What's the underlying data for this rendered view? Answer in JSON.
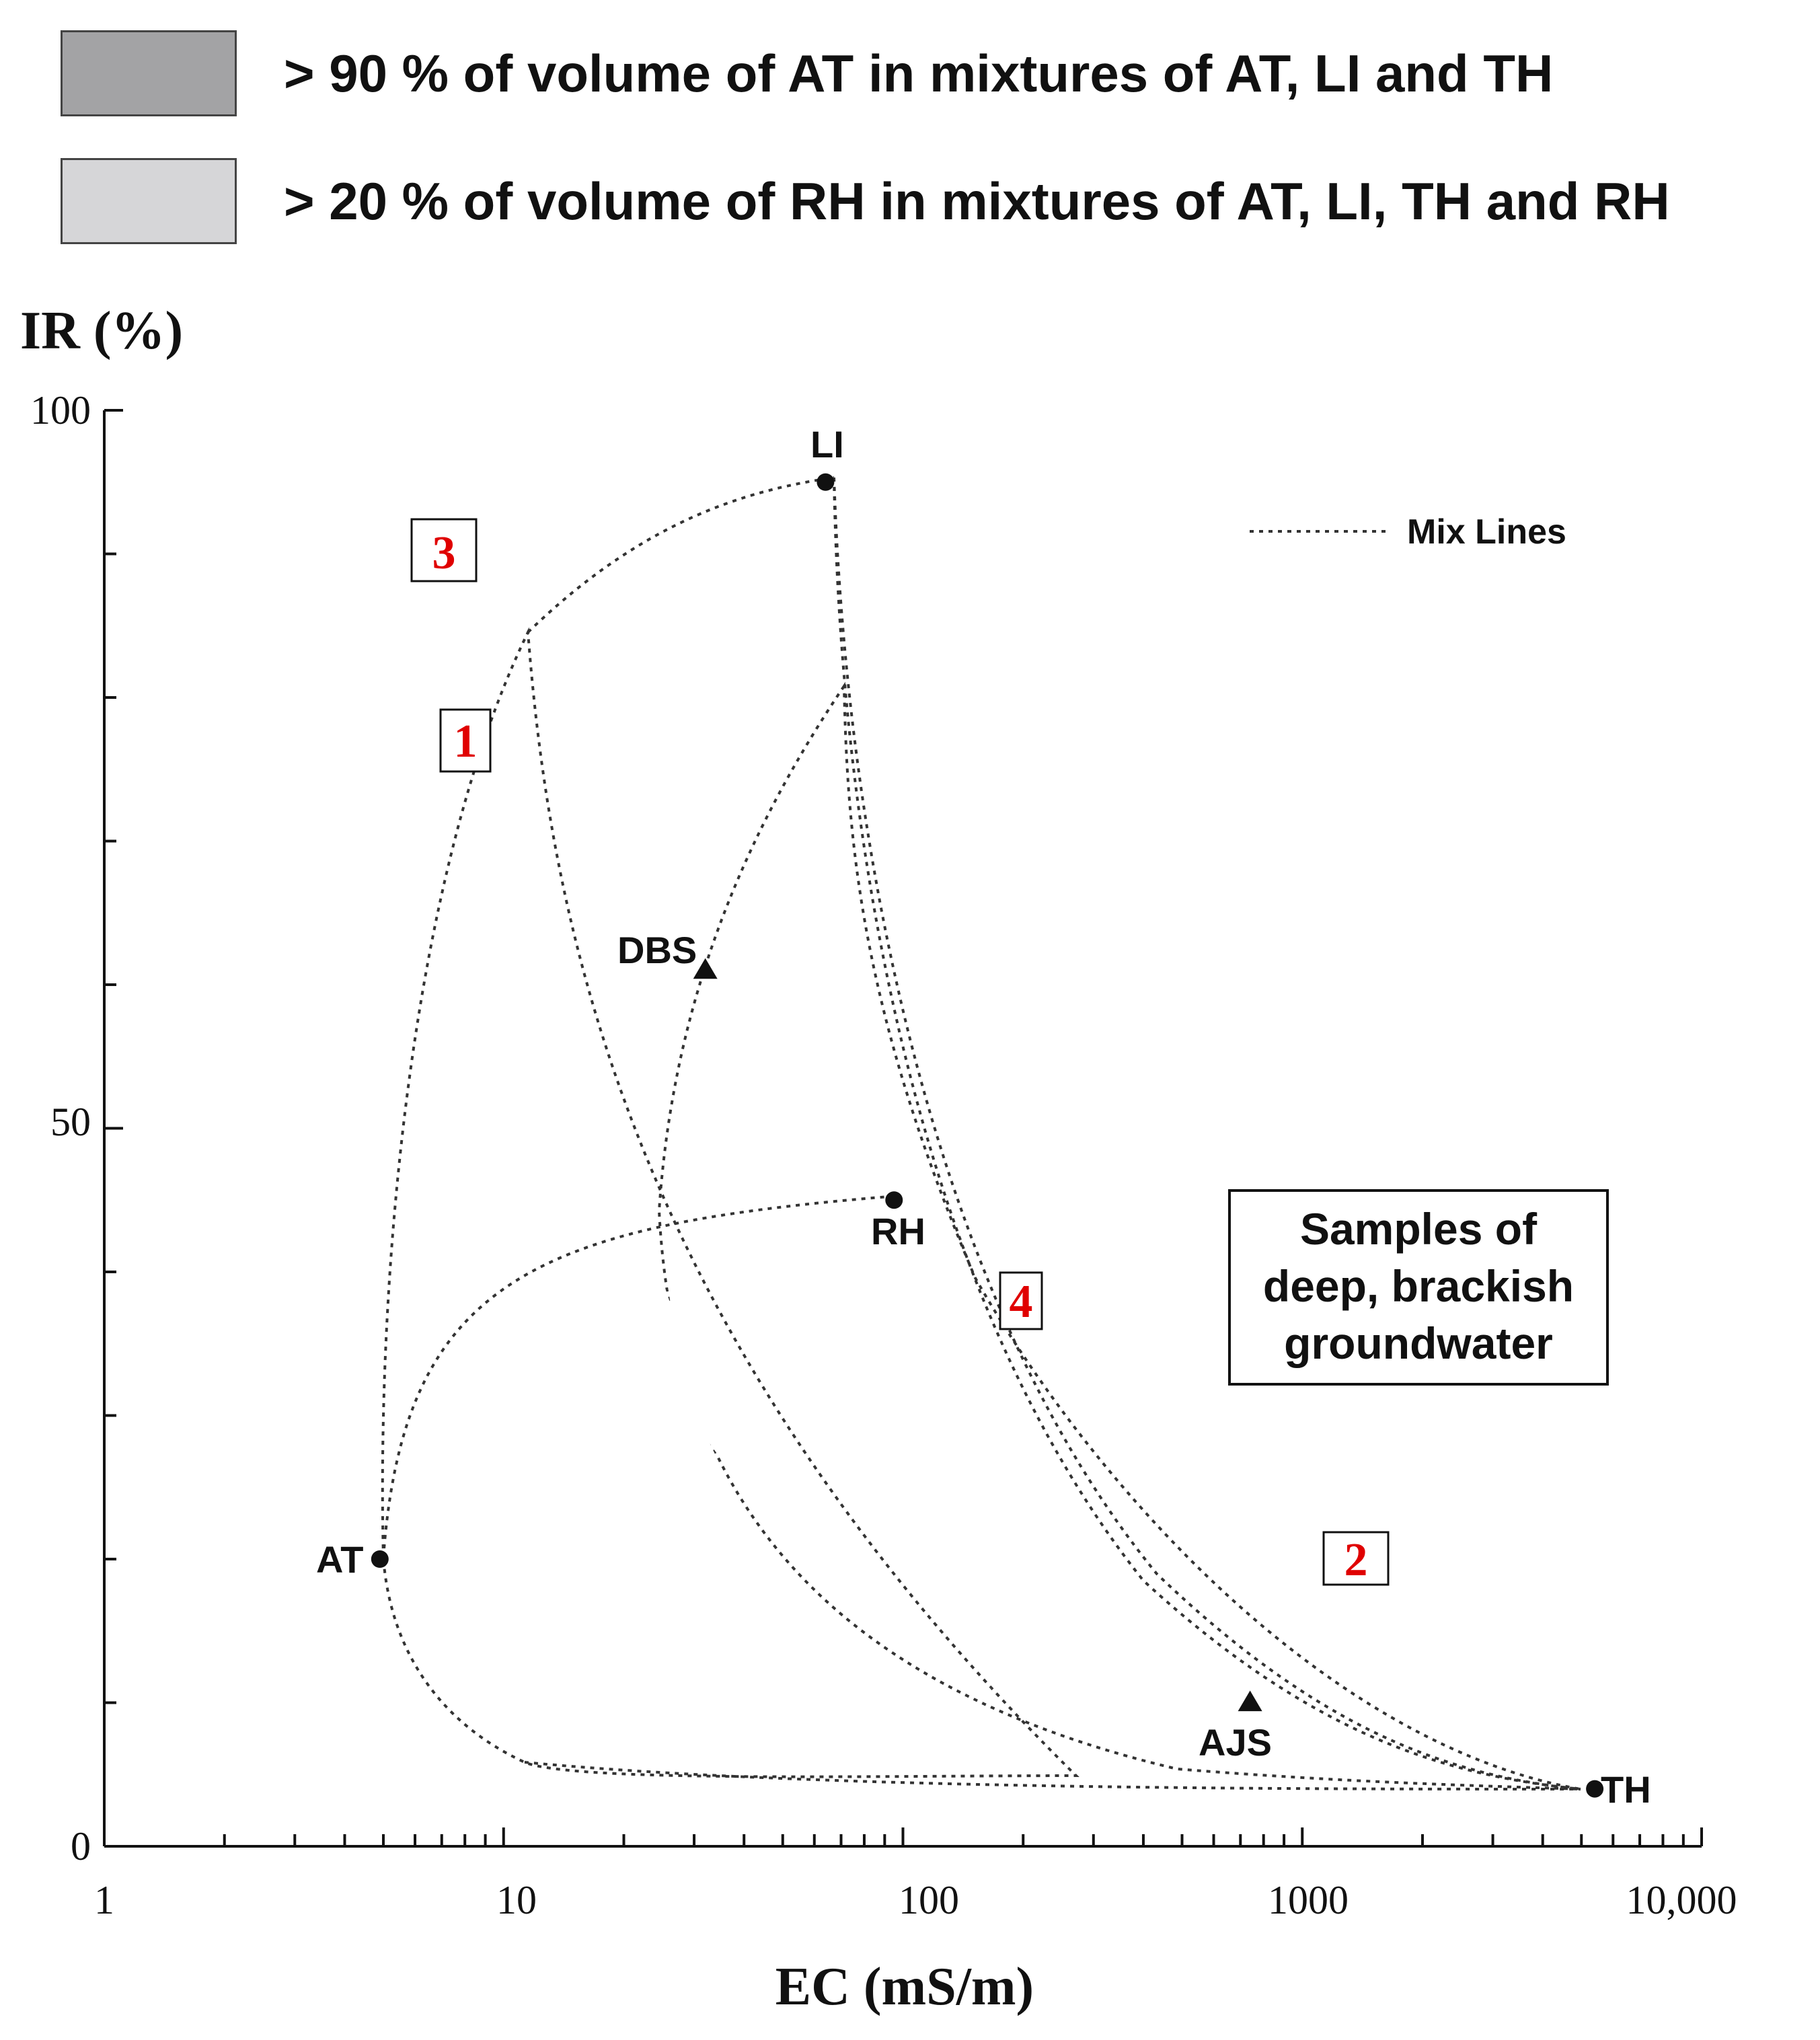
{
  "legend": {
    "items": [
      {
        "label": "> 90 % of volume of AT in mixtures of AT, LI and TH",
        "color": "#a3a3a5"
      },
      {
        "label": "> 20 % of volume of RH in mixtures of AT, LI, TH and RH",
        "color": "#d6d6d8"
      }
    ]
  },
  "chart_data": {
    "type": "scatter",
    "title": "",
    "xlabel": "EC (mS/m)",
    "ylabel": "IR (%)",
    "xscale": "log",
    "xlim": [
      1,
      10000
    ],
    "ylim": [
      0,
      100
    ],
    "x_tick_labels": [
      "1",
      "10",
      "100",
      "1000",
      "10,000"
    ],
    "y_tick_labels": [
      "0",
      "50",
      "100"
    ],
    "end_members": [
      {
        "name": "AT",
        "x": 4.9,
        "y": 20
      },
      {
        "name": "LI",
        "x": 64,
        "y": 95
      },
      {
        "name": "TH",
        "x": 5400,
        "y": 4
      },
      {
        "name": "RH",
        "x": 95,
        "y": 45
      }
    ],
    "samples": [
      {
        "name": "DBS",
        "x": 32,
        "y": 61
      },
      {
        "name": "AJS",
        "x": 740,
        "y": 10
      }
    ],
    "zone_labels": [
      "1",
      "2",
      "3",
      "4"
    ],
    "mix_legend": "Mix Lines",
    "annotation": [
      "Samples of",
      "deep, brackish",
      "groundwater"
    ],
    "colors": {
      "dark_region": "#a3a3a5",
      "light_region": "#d6d6d8"
    }
  }
}
